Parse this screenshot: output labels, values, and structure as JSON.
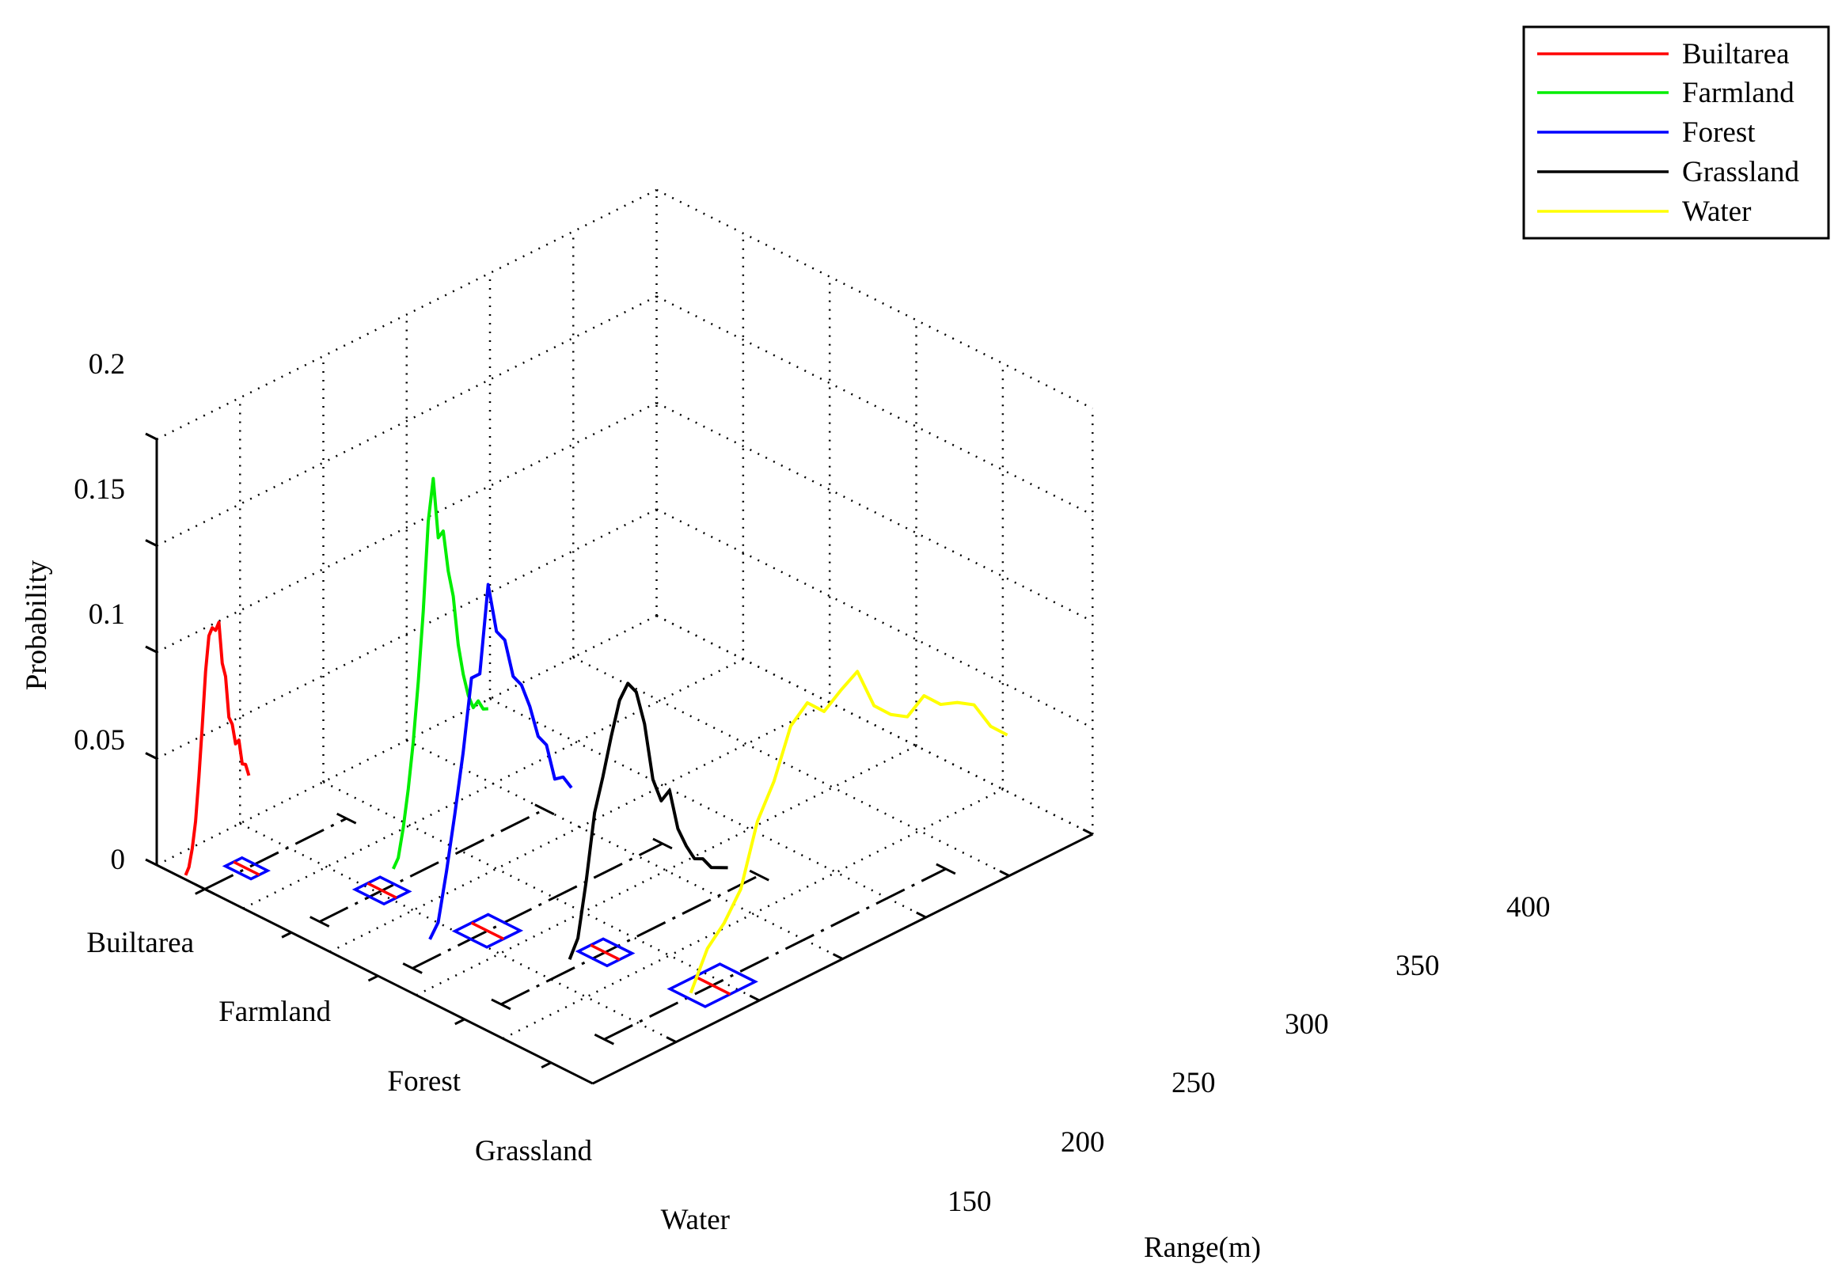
{
  "chart_data": {
    "type": "line3d",
    "title": "",
    "xlabel": "Range(m)",
    "ylabel": "",
    "zlabel": "Probability",
    "xlim": [
      100,
      400
    ],
    "xticks": [
      150,
      200,
      250,
      300,
      350,
      400
    ],
    "zlim": [
      0,
      0.2
    ],
    "zticks": [
      "0",
      "0.05",
      "0.1",
      "0.15",
      "0.2"
    ],
    "categories": [
      "Builtarea",
      "Farmland",
      "Forest",
      "Grassland",
      "Water"
    ],
    "grid": true,
    "legend_position": "top-right",
    "series": [
      {
        "name": "Builtarea",
        "color": "#ff0000",
        "x": [
          100,
          102,
          104,
          106,
          108,
          110,
          112,
          114,
          116,
          118,
          120,
          122,
          124,
          126,
          128,
          130,
          132,
          134,
          136,
          138
        ],
        "y": [
          0.002,
          0.005,
          0.013,
          0.025,
          0.045,
          0.068,
          0.093,
          0.109,
          0.112,
          0.11,
          0.113,
          0.093,
          0.086,
          0.066,
          0.062,
          0.052,
          0.053,
          0.041,
          0.04,
          0.034
        ]
      },
      {
        "name": "Farmland",
        "color": "#00ee00",
        "x": [
          110,
          113,
          116,
          119,
          122,
          125,
          128,
          131,
          134,
          137,
          140,
          143,
          146,
          149,
          152,
          155,
          158,
          161,
          164,
          167
        ],
        "y": [
          0.003,
          0.007,
          0.02,
          0.037,
          0.058,
          0.085,
          0.117,
          0.158,
          0.177,
          0.148,
          0.15,
          0.13,
          0.117,
          0.093,
          0.078,
          0.067,
          0.06,
          0.062,
          0.057,
          0.056
        ]
      },
      {
        "name": "Forest",
        "color": "#0000ff",
        "x": [
          110,
          115,
          120,
          125,
          130,
          135,
          140,
          145,
          150,
          155,
          160,
          165,
          170,
          175,
          180,
          185,
          190,
          195
        ],
        "y": [
          0.002,
          0.008,
          0.03,
          0.055,
          0.082,
          0.115,
          0.115,
          0.155,
          0.131,
          0.125,
          0.106,
          0.1,
          0.088,
          0.072,
          0.066,
          0.048,
          0.047,
          0.04
        ]
      },
      {
        "name": "Grassland",
        "color": "#000000",
        "x": [
          110,
          115,
          120,
          125,
          130,
          135,
          140,
          145,
          150,
          155,
          160,
          165,
          170,
          175,
          180,
          185,
          190,
          195,
          200,
          205
        ],
        "y": [
          0.002,
          0.01,
          0.035,
          0.065,
          0.08,
          0.097,
          0.112,
          0.118,
          0.112,
          0.095,
          0.067,
          0.055,
          0.058,
          0.038,
          0.028,
          0.02,
          0.018,
          0.012,
          0.01,
          0.008
        ]
      },
      {
        "name": "Water",
        "color": "#ffff00",
        "x": [
          110,
          120,
          130,
          140,
          150,
          160,
          170,
          180,
          190,
          200,
          210,
          220,
          230,
          240,
          250,
          260,
          270,
          280,
          290,
          300
        ],
        "y": [
          0.003,
          0.02,
          0.028,
          0.04,
          0.068,
          0.083,
          0.105,
          0.112,
          0.104,
          0.11,
          0.115,
          0.095,
          0.087,
          0.082,
          0.088,
          0.08,
          0.077,
          0.072,
          0.058,
          0.05
        ]
      }
    ]
  }
}
